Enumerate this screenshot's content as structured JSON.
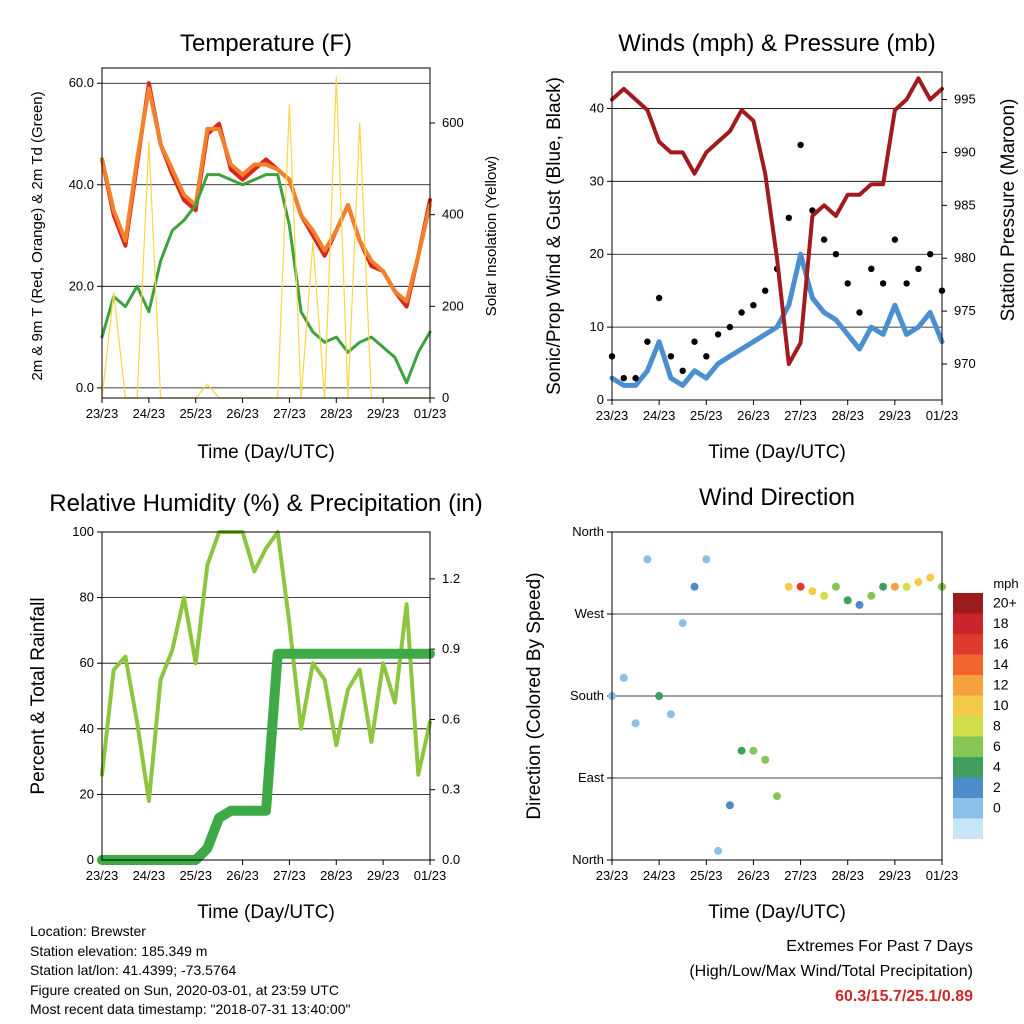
{
  "panels": {
    "temperature": {
      "title": "Temperature (F)",
      "xlabel": "Time (Day/UTC)",
      "ylabel_left": "2m & 9m T (Red, Orange) & 2m Td (Green)",
      "ylabel_right": "Solar Insolation (Yellow)"
    },
    "winds": {
      "title": "Winds (mph) & Pressure (mb)",
      "xlabel": "Time (Day/UTC)",
      "ylabel_left": "Sonic/Prop Wind & Gust (Blue, Black)",
      "ylabel_right": "Station Pressure (Maroon)"
    },
    "humidity": {
      "title": "Relative Humidity (%) & Precipitation (in)",
      "xlabel": "Time (Day/UTC)",
      "ylabel_left": "Percent & Total Rainfall"
    },
    "direction": {
      "title": "Wind Direction",
      "xlabel": "Time (Day/UTC)",
      "ylabel_left": "Direction (Colored By Speed)"
    }
  },
  "x_ticks": [
    "23/23",
    "24/23",
    "25/23",
    "26/23",
    "27/23",
    "28/23",
    "29/23",
    "01/23"
  ],
  "info": {
    "location": "Location: Brewster",
    "elevation": "Station elevation: 185.349 m",
    "latlon": "Station lat/lon: 41.4399; -73.5764",
    "created": "Figure created on Sun, 2020-03-01, at 23:59 UTC",
    "recent": "Most recent data timestamp: \"2018-07-31 13:40:00\""
  },
  "extremes": {
    "line1": "Extremes For Past 7 Days",
    "line2": "(High/Low/Max Wind/Total Precipitation)",
    "values": "60.3/15.7/25.1/0.89"
  },
  "legend": {
    "title": "mph",
    "labels": [
      "20+",
      "18",
      "16",
      "14",
      "12",
      "10",
      "8",
      "6",
      "4",
      "2",
      "0"
    ],
    "colors": [
      "#9b1b1e",
      "#c9252b",
      "#e03a2f",
      "#f0652d",
      "#f7a040",
      "#f5c94a",
      "#d4dd4a",
      "#86c654",
      "#3f9f5f",
      "#4c8ccb",
      "#8cc0e8",
      "#c6e6f7"
    ]
  },
  "chart_data": [
    {
      "type": "line",
      "title": "Temperature (F)",
      "xlabel": "Time (Day/UTC)",
      "ylabel": "2m & 9m T (Red, Orange) & 2m Td (Green)",
      "ylabel_right": "Solar Insolation (Yellow)",
      "x_ticks": [
        "23/23",
        "24/23",
        "25/23",
        "26/23",
        "27/23",
        "28/23",
        "29/23",
        "01/23"
      ],
      "ylim": [
        -2,
        63
      ],
      "ylim_right": [
        0,
        720
      ],
      "yticks": [
        0,
        20,
        40,
        60
      ],
      "yticks_right": [
        0,
        200,
        400,
        600
      ],
      "x": [
        0,
        0.25,
        0.5,
        0.75,
        1.0,
        1.25,
        1.5,
        1.75,
        2.0,
        2.25,
        2.5,
        2.75,
        3.0,
        3.25,
        3.5,
        3.75,
        4.0,
        4.25,
        4.5,
        4.75,
        5.0,
        5.25,
        5.5,
        5.75,
        6.0,
        6.25,
        6.5,
        6.75,
        7.0
      ],
      "series": [
        {
          "color": "#d7261e",
          "axis": "left",
          "values": [
            45,
            34,
            28,
            44,
            60,
            48,
            42,
            37,
            35,
            50,
            52,
            43,
            41,
            43,
            45,
            43,
            41,
            34,
            30,
            26,
            31,
            36,
            29,
            24,
            23,
            19,
            16,
            26,
            37
          ]
        },
        {
          "color": "#f3802a",
          "axis": "left",
          "values": [
            45,
            35,
            29,
            45,
            59,
            48,
            43,
            38,
            36,
            51,
            51,
            44,
            42,
            44,
            44,
            43,
            41,
            34,
            31,
            27,
            31,
            36,
            29,
            25,
            23,
            19,
            17,
            26,
            36
          ]
        },
        {
          "color": "#3da23e",
          "axis": "left",
          "values": [
            10,
            18,
            16,
            20,
            15,
            25,
            31,
            33,
            36,
            42,
            42,
            41,
            40,
            41,
            42,
            42,
            32,
            15,
            11,
            9,
            10,
            7,
            9,
            10,
            8,
            6,
            1,
            7,
            11
          ]
        },
        {
          "color": "#f6d646",
          "axis": "right",
          "values": [
            0,
            230,
            0,
            0,
            560,
            0,
            0,
            0,
            0,
            30,
            0,
            0,
            0,
            0,
            0,
            0,
            640,
            0,
            340,
            0,
            700,
            0,
            600,
            0,
            0,
            0,
            0,
            0,
            0
          ]
        }
      ]
    },
    {
      "type": "line",
      "title": "Winds (mph) & Pressure (mb)",
      "xlabel": "Time (Day/UTC)",
      "ylabel": "Sonic/Prop Wind & Gust (Blue, Black)",
      "ylabel_right": "Station Pressure (Maroon)",
      "x_ticks": [
        "23/23",
        "24/23",
        "25/23",
        "26/23",
        "27/23",
        "28/23",
        "29/23",
        "01/23"
      ],
      "ylim": [
        0,
        45
      ],
      "ylim_right": [
        966.6,
        997.6
      ],
      "yticks": [
        0,
        10,
        20,
        30,
        40
      ],
      "yticks_right": [
        970,
        975,
        980,
        985,
        990,
        995
      ],
      "x": [
        0,
        0.25,
        0.5,
        0.75,
        1.0,
        1.25,
        1.5,
        1.75,
        2.0,
        2.25,
        2.5,
        2.75,
        3.0,
        3.25,
        3.5,
        3.75,
        4.0,
        4.25,
        4.5,
        4.75,
        5.0,
        5.25,
        5.5,
        5.75,
        6.0,
        6.25,
        6.5,
        6.75,
        7.0
      ],
      "series": [
        {
          "name": "Gust",
          "color": "#000000",
          "values": [
            6,
            3,
            3,
            8,
            14,
            6,
            4,
            8,
            6,
            9,
            10,
            12,
            13,
            15,
            18,
            25,
            35,
            26,
            22,
            20,
            16,
            12,
            18,
            16,
            22,
            16,
            18,
            20,
            15
          ]
        },
        {
          "name": "Wind",
          "color": "#4b8fd0",
          "values": [
            3,
            2,
            2,
            4,
            8,
            3,
            2,
            4,
            3,
            5,
            6,
            7,
            8,
            9,
            10,
            13,
            20,
            14,
            12,
            11,
            9,
            7,
            10,
            9,
            13,
            9,
            10,
            12,
            8
          ]
        },
        {
          "name": "Pressure",
          "color": "#a11b1e",
          "axis": "right",
          "values": [
            995,
            996,
            995,
            994,
            991,
            990,
            990,
            988,
            990,
            991,
            992,
            994,
            993,
            988,
            980,
            970,
            972,
            984,
            985,
            984,
            986,
            986,
            987,
            987,
            994,
            995,
            997,
            995,
            996
          ]
        }
      ]
    },
    {
      "type": "line",
      "title": "Relative Humidity (%) & Precipitation (in)",
      "xlabel": "Time (Day/UTC)",
      "ylabel": "Percent & Total Rainfall",
      "x_ticks": [
        "23/23",
        "24/23",
        "25/23",
        "26/23",
        "27/23",
        "28/23",
        "29/23",
        "01/23"
      ],
      "ylim": [
        0,
        100
      ],
      "ylim_right": [
        0,
        1.4
      ],
      "yticks": [
        0,
        20,
        40,
        60,
        80,
        100
      ],
      "yticks_right": [
        0.0,
        0.3,
        0.6,
        0.9,
        1.2
      ],
      "x": [
        0,
        0.25,
        0.5,
        0.75,
        1.0,
        1.25,
        1.5,
        1.75,
        2.0,
        2.25,
        2.5,
        2.75,
        3.0,
        3.25,
        3.5,
        3.75,
        4.0,
        4.25,
        4.5,
        4.75,
        5.0,
        5.25,
        5.5,
        5.75,
        6.0,
        6.25,
        6.5,
        6.75,
        7.0
      ],
      "series": [
        {
          "name": "Relative Humidity",
          "color": "#8cc63f",
          "values": [
            26,
            58,
            62,
            42,
            18,
            55,
            64,
            80,
            60,
            90,
            100,
            100,
            100,
            88,
            95,
            100,
            72,
            40,
            60,
            55,
            35,
            52,
            58,
            36,
            60,
            48,
            78,
            26,
            42
          ]
        },
        {
          "name": "Total Precipitation",
          "color": "#3daa47",
          "axis": "right",
          "values": [
            0,
            0,
            0,
            0,
            0,
            0,
            0,
            0,
            0,
            0.05,
            0.18,
            0.21,
            0.21,
            0.21,
            0.21,
            0.88,
            0.88,
            0.88,
            0.88,
            0.88,
            0.88,
            0.88,
            0.88,
            0.88,
            0.88,
            0.88,
            0.88,
            0.88,
            0.88
          ]
        }
      ]
    },
    {
      "type": "scatter",
      "title": "Wind Direction",
      "xlabel": "Time (Day/UTC)",
      "ylabel": "Direction (Colored By Speed)",
      "x_ticks": [
        "23/23",
        "24/23",
        "25/23",
        "26/23",
        "27/23",
        "28/23",
        "29/23",
        "01/23"
      ],
      "yticks": [
        "North",
        "West",
        "South",
        "East",
        "North"
      ],
      "ylim": [
        0,
        360
      ],
      "colorbar": {
        "title": "mph",
        "labels": [
          "20+",
          "18",
          "16",
          "14",
          "12",
          "10",
          "8",
          "6",
          "4",
          "2",
          "0"
        ]
      },
      "x": [
        0,
        0.25,
        0.5,
        0.75,
        1.0,
        1.25,
        1.5,
        1.75,
        2.0,
        2.25,
        2.5,
        2.75,
        3.0,
        3.25,
        3.5,
        3.75,
        4.0,
        4.25,
        4.5,
        4.75,
        5.0,
        5.25,
        5.5,
        5.75,
        6.0,
        6.25,
        6.5,
        6.75,
        7.0
      ],
      "series": [
        {
          "name": "Direction",
          "values": [
            180,
            200,
            150,
            330,
            180,
            160,
            260,
            300,
            330,
            10,
            60,
            120,
            120,
            110,
            70,
            300,
            300,
            295,
            290,
            300,
            285,
            280,
            290,
            300,
            300,
            300,
            305,
            310,
            300
          ]
        },
        {
          "name": "Speed",
          "values": [
            2,
            1,
            1,
            2,
            6,
            2,
            1,
            3,
            1,
            2,
            4,
            6,
            8,
            7,
            8,
            12,
            18,
            12,
            10,
            8,
            6,
            4,
            8,
            6,
            14,
            10,
            12,
            12,
            8
          ]
        }
      ]
    }
  ]
}
